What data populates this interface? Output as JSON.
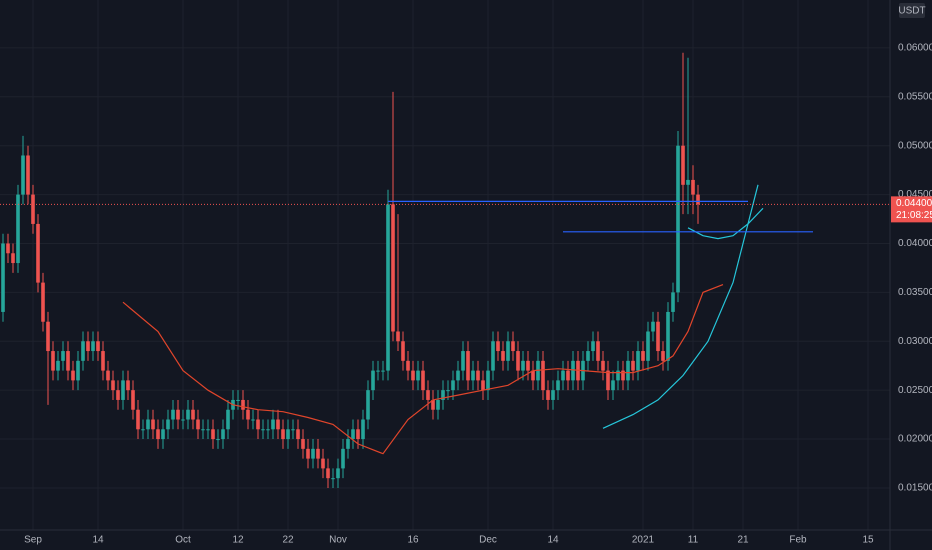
{
  "chart_data": {
    "type": "candlestick",
    "currency": "USDT",
    "price_label": 0.044001,
    "countdown": "21:08:25",
    "up_color": "#26a69a",
    "down_color": "#ef5350",
    "grid": true,
    "xlim": [
      -6.6,
      171.4
    ],
    "ylim": [
      0.0107,
      0.0649
    ],
    "xticks": [
      {
        "value": 0,
        "label": "Sep"
      },
      {
        "value": 13,
        "label": "14"
      },
      {
        "value": 30,
        "label": "Oct"
      },
      {
        "value": 41,
        "label": "12"
      },
      {
        "value": 51,
        "label": "22"
      },
      {
        "value": 61,
        "label": "Nov"
      },
      {
        "value": 76,
        "label": "16"
      },
      {
        "value": 91,
        "label": "Dec"
      },
      {
        "value": 104,
        "label": "14"
      },
      {
        "value": 122,
        "label": "2021"
      },
      {
        "value": 132,
        "label": "11"
      },
      {
        "value": 142,
        "label": "21"
      },
      {
        "value": 153,
        "label": "Feb"
      },
      {
        "value": 167,
        "label": "15"
      }
    ],
    "yticks": [
      {
        "value": 0.015,
        "label": "0.015000"
      },
      {
        "value": 0.02,
        "label": "0.020000"
      },
      {
        "value": 0.025,
        "label": "0.025000"
      },
      {
        "value": 0.03,
        "label": "0.030000"
      },
      {
        "value": 0.035,
        "label": "0.035000"
      },
      {
        "value": 0.04,
        "label": "0.040000"
      },
      {
        "value": 0.045,
        "label": "0.045000"
      },
      {
        "value": 0.05,
        "label": "0.050000"
      },
      {
        "value": 0.055,
        "label": "0.055000"
      },
      {
        "value": 0.06,
        "label": "0.060000"
      }
    ],
    "x": [
      -6,
      -5,
      -4,
      -3,
      -2,
      -1,
      0,
      1,
      2,
      3,
      4,
      5,
      6,
      7,
      8,
      9,
      10,
      11,
      12,
      13,
      14,
      15,
      16,
      17,
      18,
      19,
      20,
      21,
      22,
      23,
      24,
      25,
      26,
      27,
      28,
      29,
      30,
      31,
      32,
      33,
      34,
      35,
      36,
      37,
      38,
      39,
      40,
      41,
      42,
      43,
      44,
      45,
      46,
      47,
      48,
      49,
      50,
      51,
      52,
      53,
      54,
      55,
      56,
      57,
      58,
      59,
      60,
      61,
      62,
      63,
      64,
      65,
      66,
      67,
      68,
      69,
      70,
      71,
      72,
      73,
      74,
      75,
      76,
      77,
      78,
      79,
      80,
      81,
      82,
      83,
      84,
      85,
      86,
      87,
      88,
      89,
      90,
      91,
      92,
      93,
      94,
      95,
      96,
      97,
      98,
      99,
      100,
      101,
      102,
      103,
      104,
      105,
      106,
      107,
      108,
      109,
      110,
      111,
      112,
      113,
      114,
      115,
      116,
      117,
      118,
      119,
      120,
      121,
      122,
      123,
      124,
      125,
      126,
      127,
      128,
      129,
      130,
      131,
      132,
      133
    ],
    "open": [
      0.033,
      0.04,
      0.039,
      0.038,
      0.045,
      0.049,
      0.045,
      0.042,
      0.036,
      0.032,
      0.029,
      0.027,
      0.028,
      0.029,
      0.027,
      0.026,
      0.028,
      0.03,
      0.029,
      0.03,
      0.029,
      0.027,
      0.026,
      0.025,
      0.024,
      0.026,
      0.025,
      0.023,
      0.021,
      0.021,
      0.022,
      0.021,
      0.02,
      0.021,
      0.022,
      0.023,
      0.022,
      0.022,
      0.023,
      0.022,
      0.021,
      0.021,
      0.021,
      0.02,
      0.02,
      0.021,
      0.023,
      0.024,
      0.024,
      0.023,
      0.022,
      0.022,
      0.021,
      0.021,
      0.021,
      0.022,
      0.021,
      0.02,
      0.021,
      0.021,
      0.02,
      0.019,
      0.018,
      0.019,
      0.018,
      0.017,
      0.016,
      0.016,
      0.017,
      0.019,
      0.02,
      0.021,
      0.02,
      0.022,
      0.025,
      0.027,
      0.027,
      0.027,
      0.044,
      0.031,
      0.03,
      0.028,
      0.027,
      0.026,
      0.027,
      0.025,
      0.024,
      0.023,
      0.024,
      0.025,
      0.025,
      0.026,
      0.027,
      0.029,
      0.026,
      0.027,
      0.026,
      0.025,
      0.027,
      0.03,
      0.029,
      0.028,
      0.03,
      0.029,
      0.027,
      0.028,
      0.027,
      0.026,
      0.028,
      0.025,
      0.024,
      0.025,
      0.026,
      0.027,
      0.026,
      0.028,
      0.026,
      0.028,
      0.029,
      0.03,
      0.028,
      0.027,
      0.025,
      0.026,
      0.027,
      0.026,
      0.028,
      0.027,
      0.029,
      0.028,
      0.031,
      0.032,
      0.029,
      0.028,
      0.033,
      0.035,
      0.05,
      0.046,
      0.0465,
      0.045
    ],
    "high": [
      0.041,
      0.041,
      0.04,
      0.046,
      0.051,
      0.05,
      0.046,
      0.043,
      0.037,
      0.033,
      0.03,
      0.029,
      0.03,
      0.03,
      0.028,
      0.029,
      0.031,
      0.031,
      0.031,
      0.031,
      0.03,
      0.028,
      0.027,
      0.026,
      0.027,
      0.027,
      0.026,
      0.024,
      0.022,
      0.023,
      0.023,
      0.022,
      0.022,
      0.023,
      0.024,
      0.024,
      0.023,
      0.024,
      0.024,
      0.023,
      0.022,
      0.022,
      0.022,
      0.021,
      0.022,
      0.024,
      0.025,
      0.025,
      0.025,
      0.024,
      0.023,
      0.023,
      0.022,
      0.022,
      0.023,
      0.023,
      0.022,
      0.022,
      0.022,
      0.022,
      0.021,
      0.02,
      0.02,
      0.02,
      0.019,
      0.018,
      0.017,
      0.018,
      0.02,
      0.021,
      0.022,
      0.022,
      0.023,
      0.026,
      0.028,
      0.028,
      0.028,
      0.0455,
      0.0555,
      0.043,
      0.031,
      0.029,
      0.028,
      0.028,
      0.028,
      0.026,
      0.025,
      0.025,
      0.026,
      0.026,
      0.027,
      0.028,
      0.03,
      0.03,
      0.028,
      0.028,
      0.027,
      0.028,
      0.031,
      0.031,
      0.03,
      0.031,
      0.031,
      0.03,
      0.029,
      0.029,
      0.028,
      0.029,
      0.029,
      0.026,
      0.026,
      0.027,
      0.028,
      0.028,
      0.029,
      0.029,
      0.029,
      0.03,
      0.031,
      0.031,
      0.029,
      0.028,
      0.027,
      0.028,
      0.028,
      0.029,
      0.029,
      0.03,
      0.03,
      0.032,
      0.033,
      0.033,
      0.03,
      0.034,
      0.036,
      0.0515,
      0.0595,
      0.059,
      0.048,
      0.046
    ],
    "low": [
      0.032,
      0.038,
      0.037,
      0.037,
      0.044,
      0.044,
      0.041,
      0.035,
      0.031,
      0.0235,
      0.026,
      0.026,
      0.027,
      0.026,
      0.025,
      0.025,
      0.027,
      0.028,
      0.028,
      0.028,
      0.026,
      0.025,
      0.024,
      0.023,
      0.023,
      0.024,
      0.022,
      0.02,
      0.02,
      0.02,
      0.02,
      0.019,
      0.019,
      0.02,
      0.021,
      0.021,
      0.021,
      0.021,
      0.021,
      0.02,
      0.02,
      0.02,
      0.019,
      0.019,
      0.019,
      0.02,
      0.022,
      0.023,
      0.022,
      0.021,
      0.021,
      0.02,
      0.02,
      0.02,
      0.02,
      0.02,
      0.019,
      0.019,
      0.02,
      0.019,
      0.018,
      0.017,
      0.017,
      0.017,
      0.016,
      0.015,
      0.015,
      0.015,
      0.016,
      0.018,
      0.019,
      0.019,
      0.019,
      0.021,
      0.024,
      0.026,
      0.026,
      0.026,
      0.03,
      0.029,
      0.027,
      0.026,
      0.025,
      0.025,
      0.024,
      0.023,
      0.022,
      0.022,
      0.023,
      0.024,
      0.024,
      0.025,
      0.026,
      0.025,
      0.025,
      0.025,
      0.024,
      0.024,
      0.026,
      0.028,
      0.027,
      0.027,
      0.028,
      0.026,
      0.026,
      0.026,
      0.025,
      0.025,
      0.024,
      0.023,
      0.023,
      0.024,
      0.025,
      0.025,
      0.025,
      0.025,
      0.025,
      0.027,
      0.028,
      0.027,
      0.026,
      0.024,
      0.024,
      0.025,
      0.025,
      0.025,
      0.026,
      0.026,
      0.027,
      0.027,
      0.03,
      0.028,
      0.027,
      0.027,
      0.032,
      0.034,
      0.043,
      0.043,
      0.043,
      0.042
    ],
    "close": [
      0.04,
      0.039,
      0.038,
      0.045,
      0.049,
      0.045,
      0.042,
      0.036,
      0.032,
      0.029,
      0.027,
      0.028,
      0.029,
      0.027,
      0.026,
      0.028,
      0.03,
      0.029,
      0.03,
      0.029,
      0.027,
      0.026,
      0.025,
      0.024,
      0.026,
      0.025,
      0.023,
      0.021,
      0.021,
      0.022,
      0.021,
      0.02,
      0.021,
      0.022,
      0.023,
      0.022,
      0.022,
      0.023,
      0.022,
      0.021,
      0.021,
      0.021,
      0.02,
      0.02,
      0.021,
      0.023,
      0.024,
      0.024,
      0.023,
      0.022,
      0.022,
      0.021,
      0.021,
      0.021,
      0.022,
      0.021,
      0.02,
      0.021,
      0.021,
      0.02,
      0.019,
      0.018,
      0.019,
      0.018,
      0.017,
      0.016,
      0.016,
      0.017,
      0.019,
      0.02,
      0.021,
      0.02,
      0.022,
      0.025,
      0.027,
      0.027,
      0.027,
      0.044,
      0.031,
      0.03,
      0.028,
      0.027,
      0.026,
      0.027,
      0.025,
      0.024,
      0.023,
      0.024,
      0.025,
      0.025,
      0.026,
      0.027,
      0.029,
      0.026,
      0.027,
      0.026,
      0.025,
      0.027,
      0.03,
      0.029,
      0.028,
      0.03,
      0.029,
      0.027,
      0.028,
      0.027,
      0.026,
      0.028,
      0.025,
      0.024,
      0.025,
      0.026,
      0.027,
      0.026,
      0.028,
      0.026,
      0.028,
      0.029,
      0.03,
      0.028,
      0.027,
      0.025,
      0.026,
      0.027,
      0.026,
      0.028,
      0.027,
      0.029,
      0.028,
      0.031,
      0.032,
      0.029,
      0.028,
      0.033,
      0.035,
      0.05,
      0.046,
      0.0465,
      0.045,
      0.044
    ],
    "lines": [
      {
        "color": "#e0452b",
        "x": [
          18,
          25,
          30,
          35,
          40,
          45,
          50,
          55,
          60,
          65,
          70,
          75,
          80,
          85,
          90,
          95,
          100,
          105,
          110,
          115,
          120,
          125,
          128,
          131,
          134,
          138
        ],
        "values": [
          0.034,
          0.031,
          0.027,
          0.025,
          0.0235,
          0.023,
          0.0228,
          0.0222,
          0.0215,
          0.0195,
          0.0185,
          0.022,
          0.024,
          0.0245,
          0.025,
          0.0255,
          0.027,
          0.0272,
          0.027,
          0.0268,
          0.0268,
          0.0275,
          0.0285,
          0.031,
          0.035,
          0.0358
        ]
      },
      {
        "color": "#26c6da",
        "x": [
          114,
          120,
          125,
          130,
          135,
          140,
          143,
          145
        ],
        "values": [
          0.0211,
          0.0225,
          0.024,
          0.0265,
          0.03,
          0.036,
          0.042,
          0.046
        ]
      },
      {
        "color": "#26c6da",
        "x": [
          131,
          134,
          137,
          140,
          143,
          146
        ],
        "values": [
          0.0416,
          0.0408,
          0.0405,
          0.0408,
          0.042,
          0.0436
        ]
      },
      {
        "color": "#2962ff",
        "x": [
          71,
          143
        ],
        "values": [
          0.0443,
          0.0443
        ]
      },
      {
        "color": "#2962ff",
        "x": [
          106,
          156
        ],
        "values": [
          0.0412,
          0.0412
        ]
      }
    ]
  }
}
